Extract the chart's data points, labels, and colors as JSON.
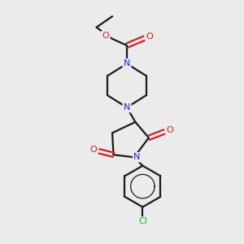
{
  "bg_color": "#ebebeb",
  "bond_color": "#1a1a1a",
  "N_color": "#2222cc",
  "O_color": "#cc2222",
  "Cl_color": "#22aa22",
  "line_width": 1.6,
  "figsize": [
    3.0,
    3.0
  ],
  "dpi": 100,
  "xlim": [
    0,
    10
  ],
  "ylim": [
    0,
    10
  ]
}
